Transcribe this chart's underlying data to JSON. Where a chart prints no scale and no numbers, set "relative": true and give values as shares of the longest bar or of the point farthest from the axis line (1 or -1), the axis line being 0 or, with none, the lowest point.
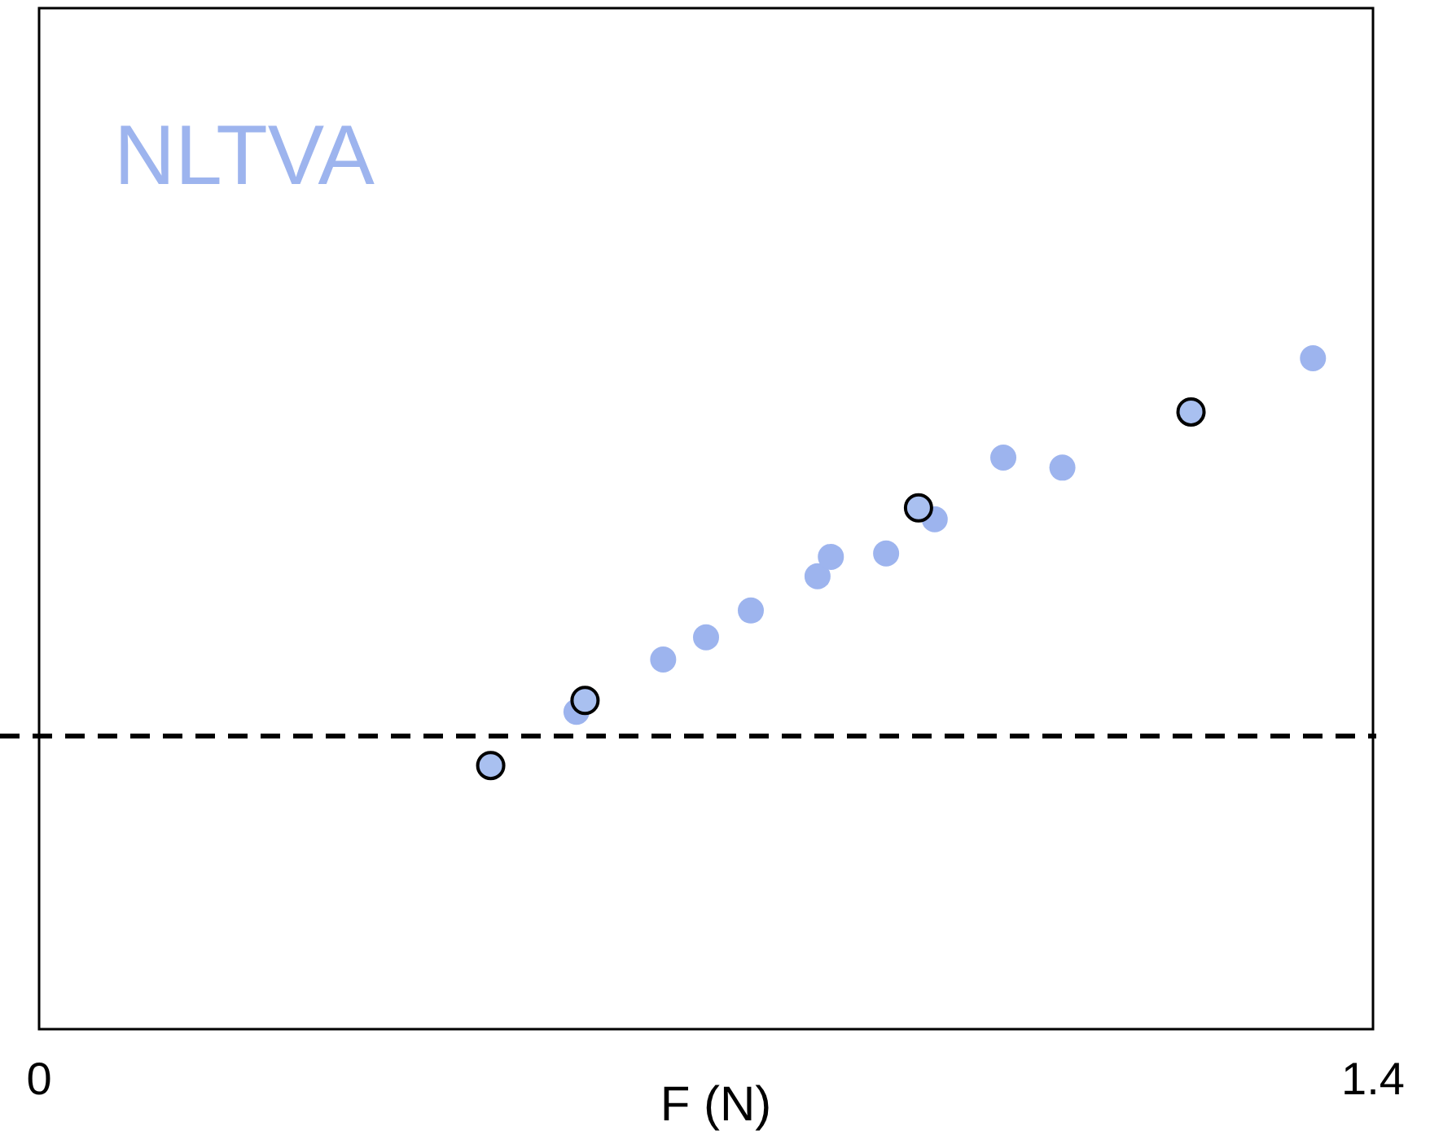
{
  "chart_data": {
    "type": "scatter",
    "title": "NLTVA",
    "xlabel": "F (N)",
    "xlim": [
      0,
      1.4
    ],
    "xticks": [
      0,
      1.4
    ],
    "relative": true,
    "marker": "circle",
    "grid": false,
    "series": [
      {
        "color": "#9db4ee",
        "x": [
          0.564,
          0.655,
          0.7,
          0.747,
          0.817,
          0.831,
          0.889,
          0.94,
          1.012,
          1.074,
          1.337
        ],
        "values": [
          0.473,
          0.551,
          0.584,
          0.624,
          0.675,
          0.704,
          0.709,
          0.76,
          0.852,
          0.837,
          1
        ]
      },
      {
        "color": "#a9c0f0",
        "x": [
          0.474,
          0.573,
          0.923,
          1.209
        ],
        "values": [
          0.393,
          0.49,
          0.777,
          0.92
        ]
      }
    ],
    "ref_lines": [
      {
        "axis": "y",
        "value": 0.437,
        "line_style": "dashed",
        "color": "#000000"
      }
    ]
  }
}
